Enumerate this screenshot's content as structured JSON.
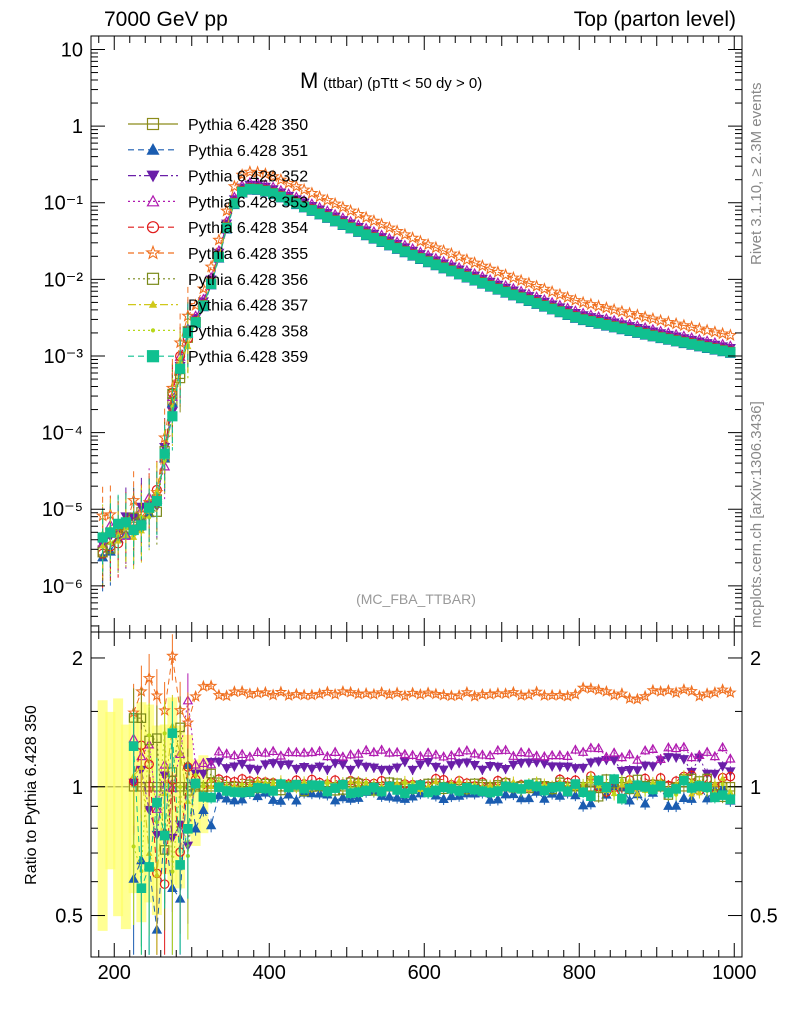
{
  "header": {
    "left": "7000 GeV pp",
    "right": "Top (parton level)"
  },
  "side_labels": {
    "rivet": "Rivet 3.1.10, ≥ 2.3M events",
    "mcplots": "mcplots.cern.ch [arXiv:1306.3436]"
  },
  "chart_data": {
    "type": "line",
    "title_main": "M",
    "title_rest": "(ttbar) (pTtt < 50 dy > 0)",
    "watermark": "(MC_FBA_TTBAR)",
    "xlim": [
      170,
      1010
    ],
    "upper": {
      "yscale": "log",
      "ylim": [
        2.5e-07,
        15
      ],
      "ytick_labels": [
        "10",
        "1",
        "10⁻¹",
        "10⁻²",
        "10⁻³",
        "10⁻⁴",
        "10⁻⁵",
        "10⁻⁶"
      ],
      "ytick_values": [
        10,
        1,
        0.1,
        0.01,
        0.001,
        0.0001,
        1e-05,
        1e-06
      ]
    },
    "lower": {
      "ylabel": "Ratio to Pythia 6.428 350",
      "yscale": "log",
      "ylim": [
        0.4,
        2.3
      ],
      "ytick_labels": [
        "2",
        "1",
        "0.5"
      ],
      "ytick_values": [
        2,
        1,
        0.5
      ]
    },
    "xtick_labels": [
      "200",
      "400",
      "600",
      "800",
      "1000"
    ],
    "xtick_values": [
      200,
      400,
      600,
      800,
      1000
    ],
    "legend_placement": "top-left",
    "reference_shape": {
      "x": [
        180,
        200,
        220,
        240,
        250,
        260,
        270,
        280,
        290,
        300,
        310,
        320,
        330,
        340,
        350,
        360,
        370,
        380,
        400,
        450,
        500,
        600,
        700,
        800,
        900,
        1000
      ],
      "y": [
        3.5e-06,
        4.5e-06,
        6e-06,
        8e-06,
        1e-05,
        1.8e-05,
        0.00012,
        0.0005,
        0.0012,
        0.0022,
        0.0035,
        0.006,
        0.013,
        0.03,
        0.075,
        0.13,
        0.15,
        0.155,
        0.14,
        0.085,
        0.05,
        0.018,
        0.0072,
        0.0031,
        0.0018,
        0.0011
      ]
    },
    "series": [
      {
        "name": "Pythia 6.428 350",
        "color": "#8c8c1a",
        "marker": "square-open",
        "dash": "",
        "ratio": 1.0
      },
      {
        "name": "Pythia 6.428 351",
        "color": "#1a5cb0",
        "marker": "triangle-up",
        "dash": "6,4",
        "ratio": 0.95
      },
      {
        "name": "Pythia 6.428 352",
        "color": "#6a1fa8",
        "marker": "triangle-down",
        "dash": "8,3,2,3",
        "ratio": 1.12
      },
      {
        "name": "Pythia 6.428 353",
        "color": "#b01ab0",
        "marker": "triangle-up-open",
        "dash": "2,3",
        "ratio": 1.2
      },
      {
        "name": "Pythia 6.428 354",
        "color": "#e01a1a",
        "marker": "circle-open",
        "dash": "6,4",
        "ratio": 1.02
      },
      {
        "name": "Pythia 6.428 355",
        "color": "#f07020",
        "marker": "star-open",
        "dash": "6,4",
        "ratio": 1.65
      },
      {
        "name": "Pythia 6.428 356",
        "color": "#7a8a1a",
        "marker": "square-open",
        "dash": "2,3",
        "ratio": 1.0
      },
      {
        "name": "Pythia 6.428 357",
        "color": "#d0c81a",
        "marker": "triangle-small",
        "dash": "8,3,2,3",
        "ratio": 1.01
      },
      {
        "name": "Pythia 6.428 358",
        "color": "#b8d81a",
        "marker": "dot",
        "dash": "2,3",
        "ratio": 1.0
      },
      {
        "name": "Pythia 6.428 359",
        "color": "#10c090",
        "marker": "square",
        "dash": "6,4",
        "ratio": 0.99
      }
    ]
  }
}
